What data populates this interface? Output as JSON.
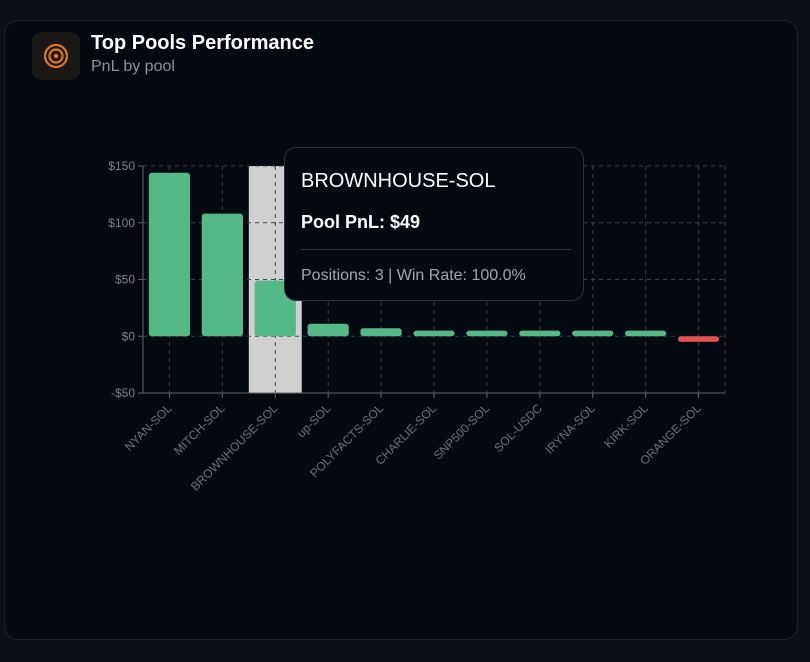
{
  "header": {
    "title": "Top Pools Performance",
    "subtitle": "PnL by pool",
    "icon": "target-icon"
  },
  "colors": {
    "positive": "#55b987",
    "negative": "#e0524f",
    "highlight": "#d0d0d0",
    "icon": "#e0762c"
  },
  "tooltip": {
    "title": "BROWNHOUSE-SOL",
    "value": "Pool PnL: $49",
    "meta": "Positions: 3 | Win Rate: 100.0%"
  },
  "chart_data": {
    "type": "bar",
    "title": "",
    "xlabel": "",
    "ylabel": "",
    "categories": [
      "NYAN-SOL",
      "MITCH-SOL",
      "BROWNHOUSE-SOL",
      "up-SOL",
      "POLYFACTS-SOL",
      "CHARLIE-SOL",
      "SNP500-SOL",
      "SOL-USDC",
      "IRYNA-SOL",
      "KIRK-SOL",
      "ORANGE-SOL"
    ],
    "values": [
      144,
      108,
      49,
      11,
      7,
      5,
      5,
      5,
      5,
      5,
      -5
    ],
    "ylim": [
      -50,
      150
    ],
    "yticks": [
      -50,
      0,
      50,
      100,
      150
    ],
    "ytick_labels": [
      "-$50",
      "$0",
      "$50",
      "$100",
      "$150"
    ],
    "grid": true,
    "highlighted_category": "BROWNHOUSE-SOL"
  }
}
